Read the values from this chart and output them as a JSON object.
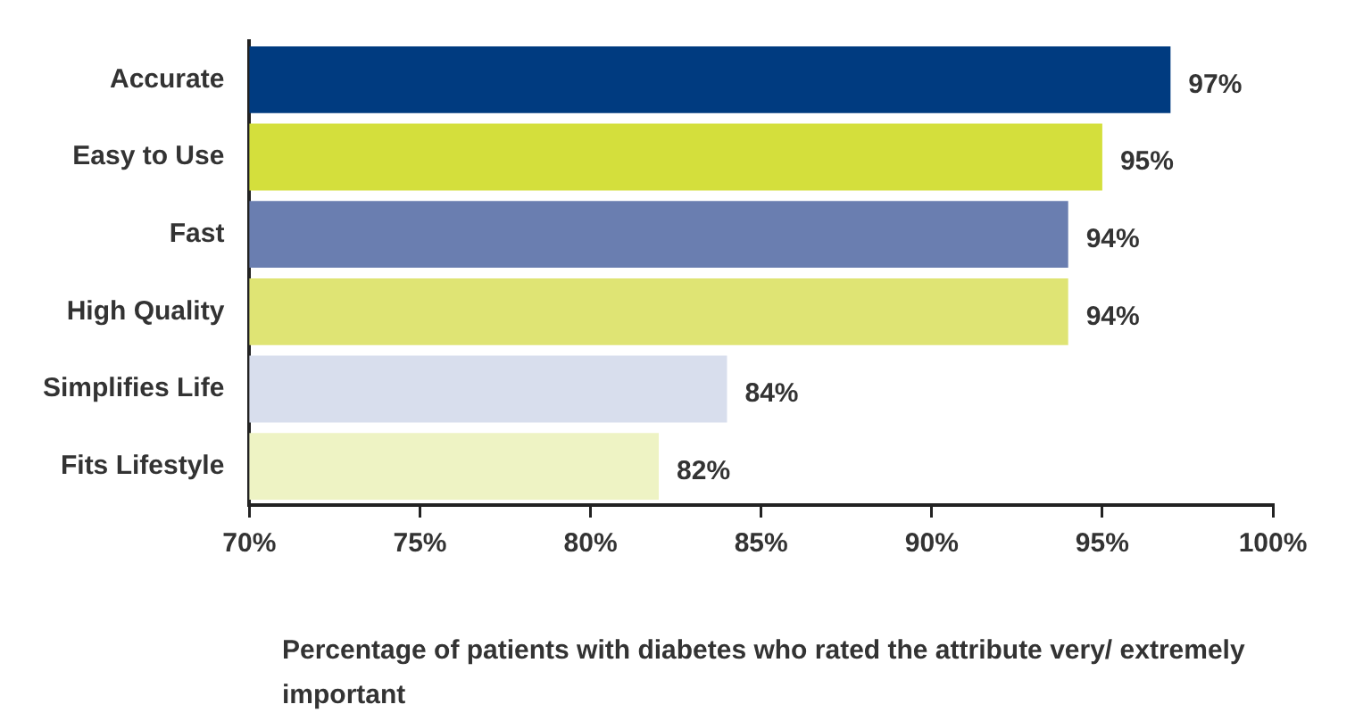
{
  "chart_data": {
    "type": "bar",
    "orientation": "horizontal",
    "xlabel": "Percentage of patients with diabetes who rated the attribute very/ extremely important",
    "categories": [
      "Accurate",
      "Easy to Use",
      "Fast",
      "High Quality",
      "Simplifies Life",
      "Fits Lifestyle"
    ],
    "values": [
      97,
      95,
      94,
      94,
      84,
      82
    ],
    "value_labels": [
      "97%",
      "95%",
      "94%",
      "94%",
      "84%",
      "82%"
    ],
    "colors": [
      "#003b80",
      "#d4df3c",
      "#6a7eb0",
      "#dfe474",
      "#d8deed",
      "#eef3c4"
    ],
    "xlim": [
      70,
      100
    ],
    "xticks": [
      {
        "value": 70,
        "label": "70%"
      },
      {
        "value": 75,
        "label": "75%"
      },
      {
        "value": 80,
        "label": "80%"
      },
      {
        "value": 85,
        "label": "85%"
      },
      {
        "value": 90,
        "label": "90%"
      },
      {
        "value": 95,
        "label": "95%"
      },
      {
        "value": 100,
        "label": "100%"
      }
    ],
    "grid": false,
    "legend": false
  }
}
